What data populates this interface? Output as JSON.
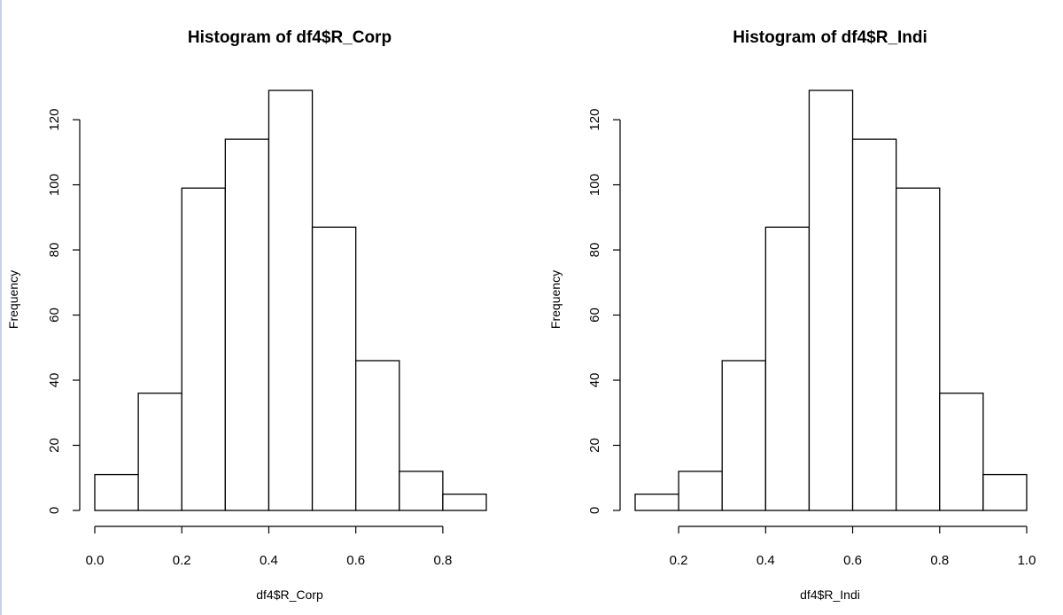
{
  "chart_data": [
    {
      "type": "bar",
      "title": "Histogram of df4$R_Corp",
      "xlabel": "df4$R_Corp",
      "ylabel": "Frequency",
      "bins": [
        [
          0.0,
          0.1
        ],
        [
          0.1,
          0.2
        ],
        [
          0.2,
          0.3
        ],
        [
          0.3,
          0.4
        ],
        [
          0.4,
          0.5
        ],
        [
          0.5,
          0.6
        ],
        [
          0.6,
          0.7
        ],
        [
          0.7,
          0.8
        ],
        [
          0.8,
          0.9
        ]
      ],
      "values": [
        11,
        36,
        99,
        114,
        129,
        87,
        46,
        12,
        5
      ],
      "xlim": [
        0.0,
        0.9
      ],
      "ylim": [
        0,
        130
      ],
      "x_ticks": [
        0.0,
        0.2,
        0.4,
        0.6,
        0.8
      ],
      "x_tick_labels": [
        "0.0",
        "0.2",
        "0.4",
        "0.6",
        "0.8"
      ],
      "y_ticks": [
        0,
        20,
        40,
        60,
        80,
        100,
        120
      ],
      "y_tick_labels": [
        "0",
        "20",
        "40",
        "60",
        "80",
        "100",
        "120"
      ],
      "grid": false
    },
    {
      "type": "bar",
      "title": "Histogram of df4$R_Indi",
      "xlabel": "df4$R_Indi",
      "ylabel": "Frequency",
      "bins": [
        [
          0.1,
          0.2
        ],
        [
          0.2,
          0.3
        ],
        [
          0.3,
          0.4
        ],
        [
          0.4,
          0.5
        ],
        [
          0.5,
          0.6
        ],
        [
          0.6,
          0.7
        ],
        [
          0.7,
          0.8
        ],
        [
          0.8,
          0.9
        ],
        [
          0.9,
          1.0
        ]
      ],
      "values": [
        5,
        12,
        46,
        87,
        129,
        114,
        99,
        36,
        11
      ],
      "xlim": [
        0.1,
        1.0
      ],
      "ylim": [
        0,
        130
      ],
      "x_ticks": [
        0.2,
        0.4,
        0.6,
        0.8,
        1.0
      ],
      "x_tick_labels": [
        "0.2",
        "0.4",
        "0.6",
        "0.8",
        "1.0"
      ],
      "y_ticks": [
        0,
        20,
        40,
        60,
        80,
        100,
        120
      ],
      "y_tick_labels": [
        "0",
        "20",
        "40",
        "60",
        "80",
        "100",
        "120"
      ],
      "grid": false
    }
  ]
}
